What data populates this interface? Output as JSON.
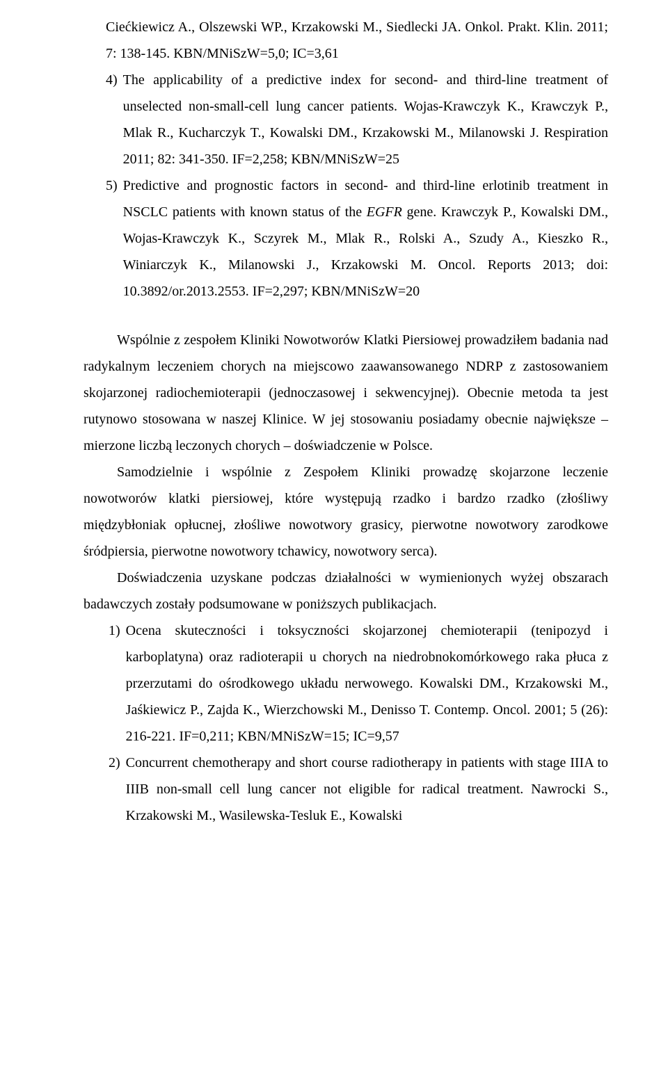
{
  "list1": {
    "item3_cont": "Ciećkiewicz A., Olszewski WP., Krzakowski M., Siedlecki JA. Onkol. Prakt. Klin. 2011; 7: 138-145. KBN/MNiSzW=5,0; IC=3,61",
    "item4_num": "4)",
    "item4_text": "The applicability of a predictive index for second- and third-line treatment of unselected non-small-cell lung cancer patients. Wojas-Krawczyk K., Krawczyk P., Mlak R., Kucharczyk T., Kowalski DM., Krzakowski M., Milanowski J. Respiration 2011; 82: 341-350. IF=2,258; KBN/MNiSzW=25",
    "item5_num": "5)",
    "item5_text_a": "Predictive and prognostic factors in second- and third-line erlotinib treatment in NSCLC patients with known status of the ",
    "item5_text_egfr": "EGFR",
    "item5_text_b": " gene. Krawczyk P., Kowalski DM., Wojas-Krawczyk K., Sczyrek M., Mlak R., Rolski A., Szudy A., Kieszko R., Winiarczyk K., Milanowski J., Krzakowski M. Oncol. Reports 2013; doi: 10.3892/or.2013.2553. IF=2,297; KBN/MNiSzW=20"
  },
  "p1": "Wspólnie z zespołem Kliniki Nowotworów Klatki Piersiowej prowadziłem badania nad radykalnym leczeniem chorych na miejscowo zaawansowanego NDRP z zastosowaniem skojarzonej radiochemioterapii (jednoczasowej i sekwencyjnej). Obecnie metoda ta jest rutynowo stosowana w naszej Klinice. W jej stosowaniu posiadamy obecnie największe – mierzone liczbą leczonych chorych – doświadczenie w Polsce.",
  "p2": "Samodzielnie i wspólnie z Zespołem Kliniki prowadzę skojarzone leczenie nowotworów klatki piersiowej, które występują rzadko i bardzo rzadko (złośliwy międzybłoniak opłucnej, złośliwe nowotwory grasicy, pierwotne nowotwory zarodkowe śródpiersia, pierwotne nowotwory tchawicy, nowotwory serca).",
  "p3": "Doświadczenia uzyskane podczas działalności w wymienionych wyżej obszarach badawczych zostały podsumowane w poniższych publikacjach.",
  "list2": {
    "item1_num": "1)",
    "item1_text": "Ocena skuteczności i toksyczności skojarzonej chemioterapii (tenipozyd i karboplatyna) oraz radioterapii u chorych na niedrobnokomórkowego raka płuca z przerzutami do ośrodkowego układu nerwowego. Kowalski DM., Krzakowski M., Jaśkiewicz P., Zajda K., Wierzchowski M., Denisso T. Contemp. Oncol. 2001; 5 (26): 216-221. IF=0,211; KBN/MNiSzW=15; IC=9,57",
    "item2_num": "2)",
    "item2_text": "Concurrent chemotherapy and short course radiotherapy in patients with stage IIIA to IIIB non-small cell lung cancer not eligible for radical treatment. Nawrocki S., Krzakowski M., Wasilewska-Tesluk E., Kowalski"
  }
}
